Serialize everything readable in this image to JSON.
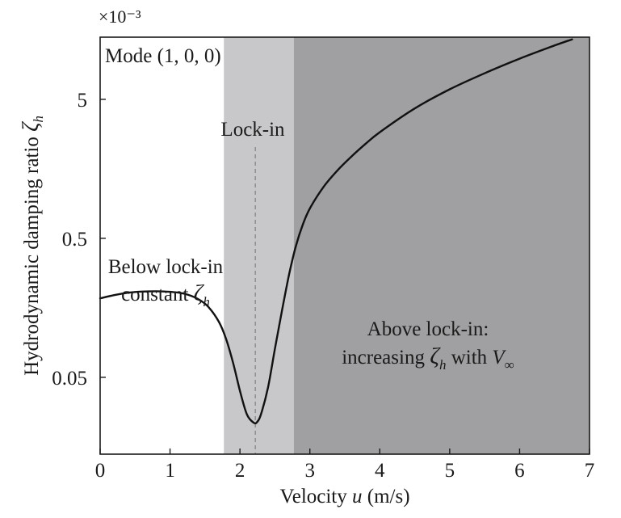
{
  "chart_data": {
    "type": "line",
    "scale_factor": "×10⁻³",
    "xlabel": {
      "text": "Velocity ",
      "var": "u",
      "unit": " (m/s)"
    },
    "ylabel": {
      "text": "Hydrodynamic damping ratio ",
      "var": "ζ",
      "sub": "h"
    },
    "xlim": [
      0,
      7
    ],
    "ylim": [
      0.014,
      14
    ],
    "yscale": "log",
    "xticks": [
      0,
      1,
      2,
      3,
      4,
      5,
      6,
      7
    ],
    "xtick_labels": [
      "0",
      "1",
      "2",
      "3",
      "4",
      "5",
      "6",
      "7"
    ],
    "yticks": [
      0.05,
      0.5,
      5
    ],
    "ytick_labels": [
      "0.05",
      "0.5",
      "5"
    ],
    "grid": false,
    "regions": [
      {
        "name": "lock-in",
        "x": [
          1.77,
          2.77
        ],
        "color": "#c8c8ca"
      },
      {
        "name": "above-lock-in",
        "x": [
          2.77,
          7
        ],
        "color": "#a0a0a2"
      }
    ],
    "lockin_line_x": 2.22,
    "series": [
      {
        "color": "#111111",
        "x": [
          0,
          0.2,
          0.4,
          0.6,
          0.8,
          1.0,
          1.2,
          1.4,
          1.55,
          1.7,
          1.8,
          1.9,
          2.0,
          2.1,
          2.2,
          2.25,
          2.3,
          2.4,
          2.5,
          2.6,
          2.7,
          2.8,
          2.9,
          3.0,
          3.2,
          3.4,
          3.6,
          3.8,
          4.0,
          4.5,
          5.0,
          5.5,
          6.0,
          6.5,
          6.75
        ],
        "y": [
          0.185,
          0.195,
          0.203,
          0.207,
          0.208,
          0.206,
          0.2,
          0.183,
          0.16,
          0.125,
          0.095,
          0.064,
          0.04,
          0.027,
          0.0235,
          0.024,
          0.027,
          0.042,
          0.08,
          0.15,
          0.27,
          0.44,
          0.63,
          0.82,
          1.18,
          1.55,
          1.95,
          2.4,
          2.9,
          4.3,
          5.9,
          7.7,
          9.8,
          12.2,
          13.5
        ]
      }
    ],
    "annotations": {
      "mode": "Mode (1, 0, 0)",
      "lockin": "Lock-in",
      "below_line1": "Below lock-in",
      "below_line2": "constant ",
      "above_line1": "Above lock-in:",
      "above_line2": "increasing ",
      "above_with": " with ",
      "zeta": "ζ",
      "h": "h",
      "V": "V",
      "inf": "∞"
    }
  }
}
